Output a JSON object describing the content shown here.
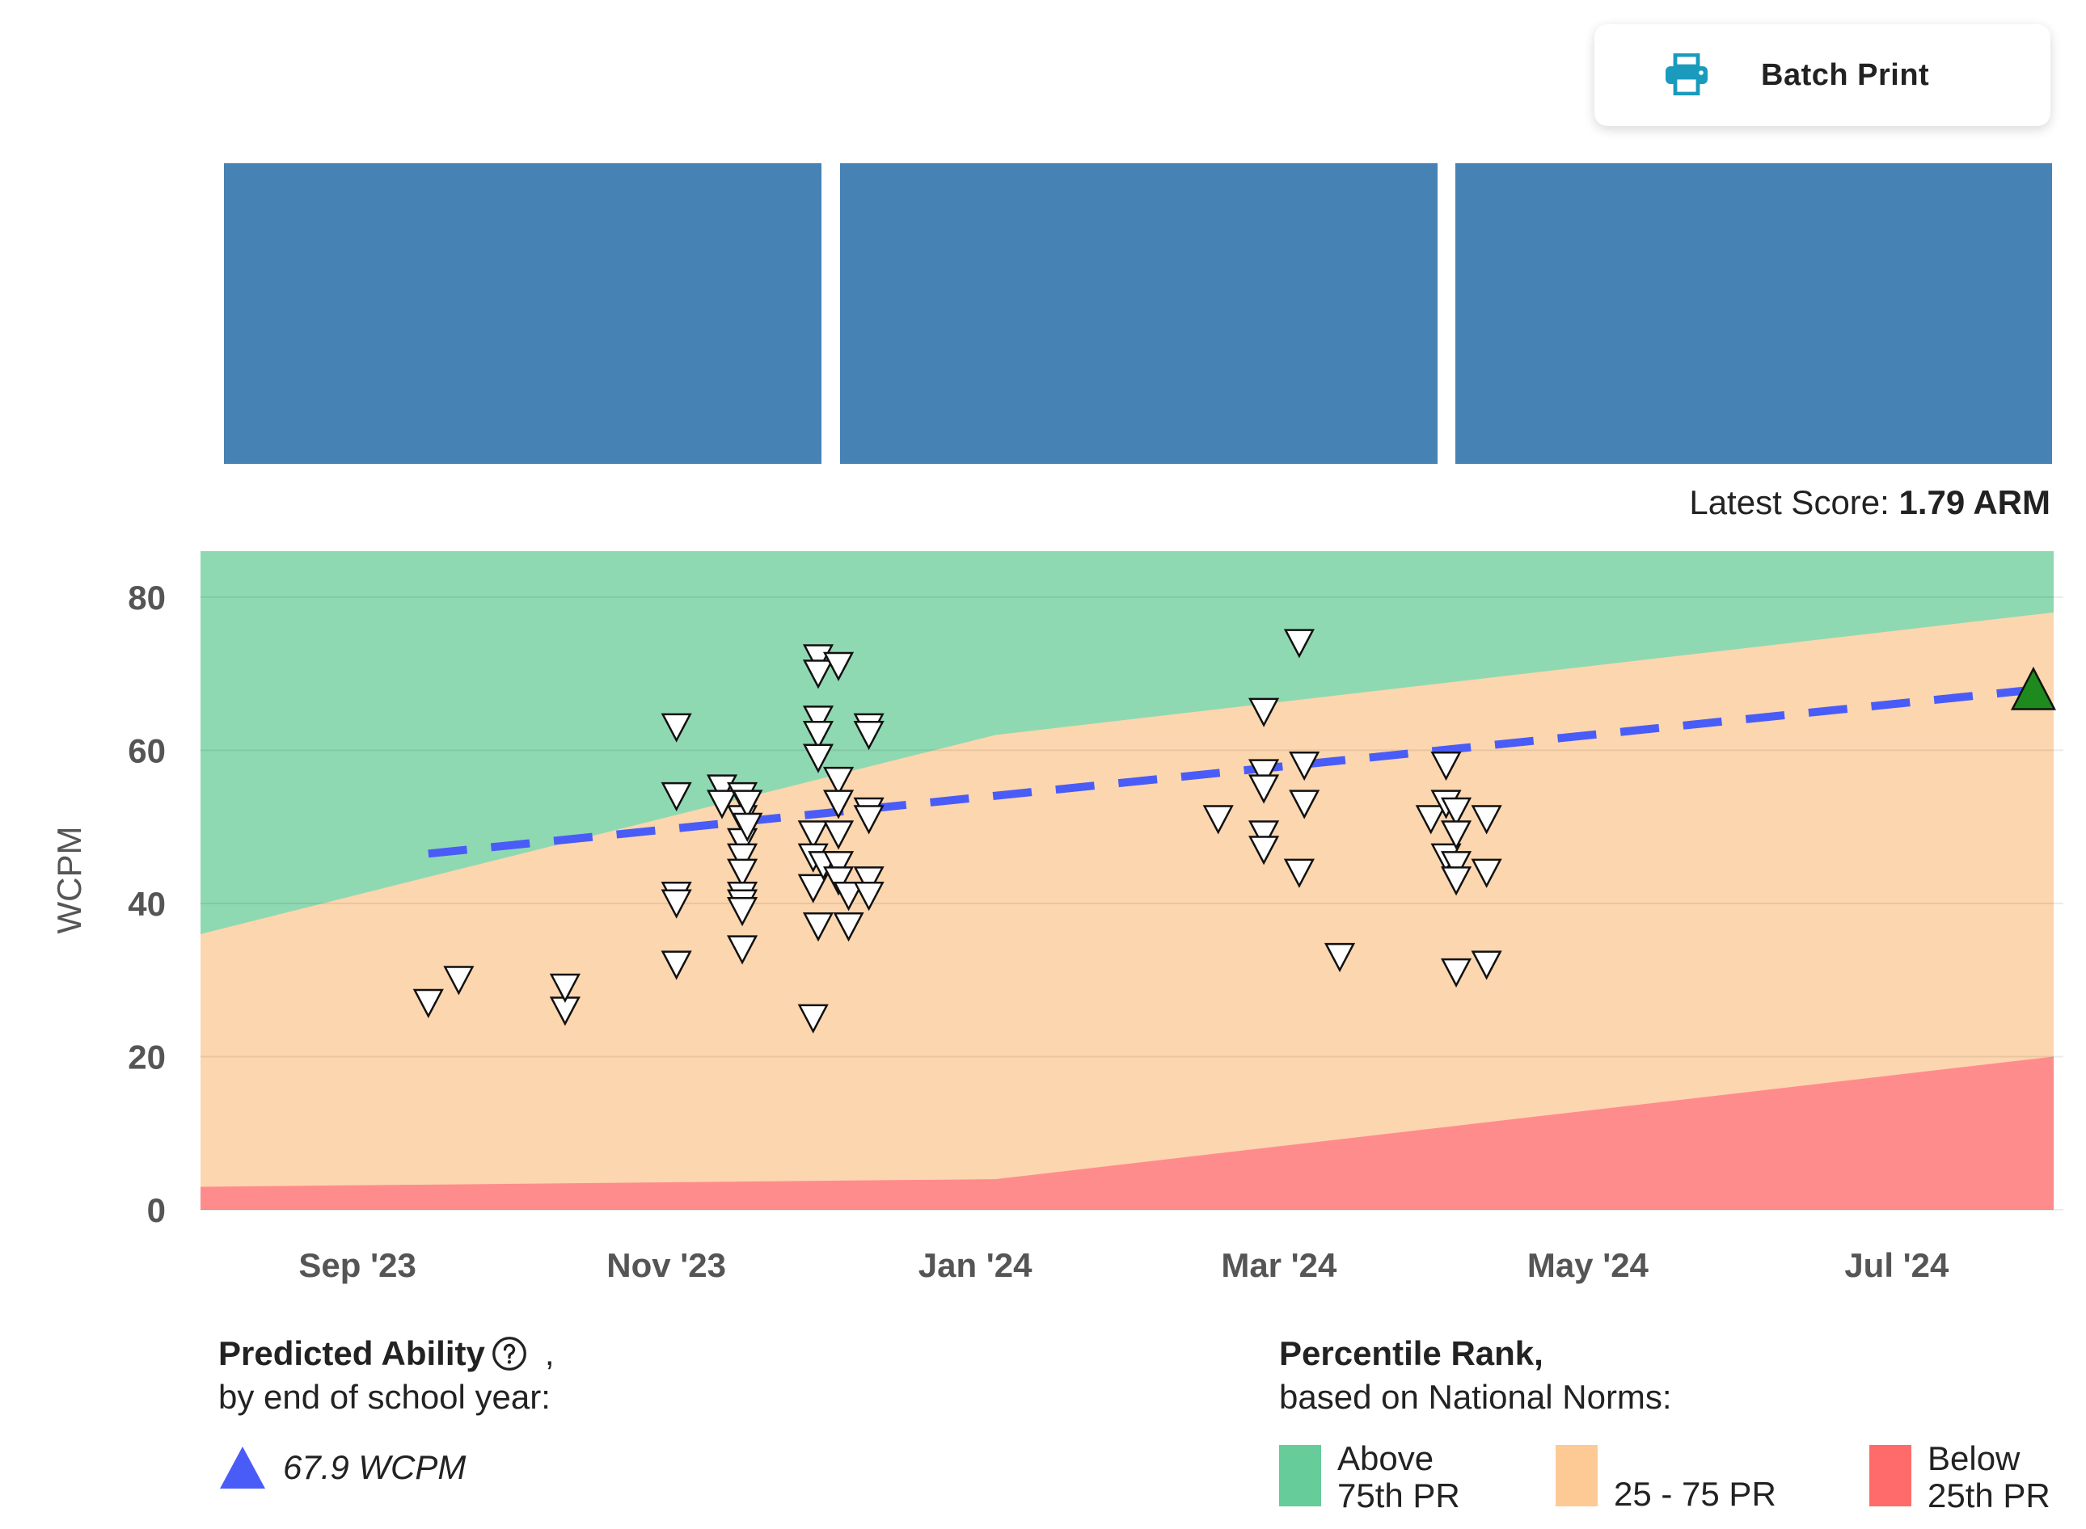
{
  "toolbar": {
    "batch_print_label": "Batch Print",
    "batch_print_icon": "printer-icon",
    "icon_color": "#1a9bbd"
  },
  "tiles": {
    "count": 3,
    "color": "#4682b4"
  },
  "latest_score": {
    "label": "Latest Score:",
    "value": "1.79 ARM"
  },
  "chart_data": {
    "type": "scatter",
    "title": "",
    "xlabel": "",
    "ylabel": "WCPM",
    "x_ticks": [
      "Sep '23",
      "Nov '23",
      "Jan '24",
      "Mar '24",
      "May '24",
      "Jul '24"
    ],
    "x_tick_dates": [
      "2023-09-01",
      "2023-11-01",
      "2024-01-01",
      "2024-03-01",
      "2024-05-01",
      "2024-07-01"
    ],
    "xlim": [
      "2023-08-01",
      "2024-08-01"
    ],
    "y_ticks": [
      0,
      20,
      40,
      60,
      80
    ],
    "ylim": [
      0,
      86
    ],
    "grid": true,
    "bands": [
      {
        "name": "Above 75th PR",
        "color": "#8fd9b2",
        "upper_boundary": [
          [
            "2023-08-01",
            86
          ],
          [
            "2024-08-01",
            86
          ]
        ]
      },
      {
        "name": "25 - 75 PR",
        "color": "#fcd6ae",
        "upper_boundary": [
          [
            "2023-08-01",
            36
          ],
          [
            "2024-01-05",
            62
          ],
          [
            "2024-08-01",
            78
          ]
        ]
      },
      {
        "name": "Below 25th PR",
        "color": "#ff8c8c",
        "upper_boundary": [
          [
            "2023-08-01",
            3
          ],
          [
            "2024-01-05",
            4
          ],
          [
            "2024-08-01",
            20
          ]
        ]
      }
    ],
    "series": [
      {
        "name": "Scores",
        "marker": "triangle-down",
        "points": [
          [
            "2023-09-15",
            27
          ],
          [
            "2023-09-21",
            30
          ],
          [
            "2023-10-12",
            26
          ],
          [
            "2023-10-12",
            29
          ],
          [
            "2023-11-03",
            63
          ],
          [
            "2023-11-03",
            54
          ],
          [
            "2023-11-03",
            41
          ],
          [
            "2023-11-03",
            40
          ],
          [
            "2023-11-03",
            32
          ],
          [
            "2023-11-12",
            55
          ],
          [
            "2023-11-12",
            53
          ],
          [
            "2023-11-16",
            54
          ],
          [
            "2023-11-16",
            51
          ],
          [
            "2023-11-16",
            48
          ],
          [
            "2023-11-16",
            46
          ],
          [
            "2023-11-16",
            44
          ],
          [
            "2023-11-16",
            41
          ],
          [
            "2023-11-16",
            40
          ],
          [
            "2023-11-16",
            39
          ],
          [
            "2023-11-16",
            34
          ],
          [
            "2023-11-17",
            53
          ],
          [
            "2023-11-17",
            50
          ],
          [
            "2023-11-30",
            49
          ],
          [
            "2023-11-30",
            46
          ],
          [
            "2023-11-30",
            42
          ],
          [
            "2023-11-30",
            25
          ],
          [
            "2023-12-01",
            72
          ],
          [
            "2023-12-01",
            70
          ],
          [
            "2023-12-01",
            64
          ],
          [
            "2023-12-01",
            62
          ],
          [
            "2023-12-01",
            59
          ],
          [
            "2023-12-01",
            37
          ],
          [
            "2023-12-02",
            45
          ],
          [
            "2023-12-05",
            71
          ],
          [
            "2023-12-05",
            56
          ],
          [
            "2023-12-05",
            53
          ],
          [
            "2023-12-05",
            49
          ],
          [
            "2023-12-05",
            45
          ],
          [
            "2023-12-05",
            43
          ],
          [
            "2023-12-07",
            41
          ],
          [
            "2023-12-07",
            37
          ],
          [
            "2023-12-11",
            63
          ],
          [
            "2023-12-11",
            62
          ],
          [
            "2023-12-11",
            52
          ],
          [
            "2023-12-11",
            51
          ],
          [
            "2023-12-11",
            43
          ],
          [
            "2023-12-11",
            41
          ],
          [
            "2024-02-18",
            51
          ],
          [
            "2024-02-27",
            65
          ],
          [
            "2024-02-27",
            57
          ],
          [
            "2024-02-27",
            55
          ],
          [
            "2024-02-27",
            49
          ],
          [
            "2024-02-27",
            47
          ],
          [
            "2024-03-05",
            74
          ],
          [
            "2024-03-05",
            44
          ],
          [
            "2024-03-06",
            58
          ],
          [
            "2024-03-06",
            53
          ],
          [
            "2024-03-13",
            33
          ],
          [
            "2024-03-31",
            51
          ],
          [
            "2024-04-03",
            58
          ],
          [
            "2024-04-03",
            53
          ],
          [
            "2024-04-03",
            46
          ],
          [
            "2024-04-05",
            52
          ],
          [
            "2024-04-05",
            49
          ],
          [
            "2024-04-05",
            45
          ],
          [
            "2024-04-05",
            43
          ],
          [
            "2024-04-05",
            31
          ],
          [
            "2024-04-11",
            51
          ],
          [
            "2024-04-11",
            44
          ],
          [
            "2024-04-11",
            32
          ]
        ]
      },
      {
        "name": "Trend",
        "style": "dashed",
        "color": "#4a5cf7",
        "points": [
          [
            "2023-09-15",
            46.5
          ],
          [
            "2024-07-28",
            67.9
          ]
        ]
      },
      {
        "name": "Predicted Ability",
        "marker": "triangle-up",
        "color": "#1e8a1e",
        "points": [
          [
            "2024-07-28",
            67.9
          ]
        ]
      }
    ]
  },
  "legend_predicted": {
    "title": "Predicted Ability",
    "help_icon": "question-circle-icon",
    "comma": ",",
    "subtitle": "by end of school year:",
    "marker_icon": "blue-triangle-icon",
    "marker_color": "#4a5cf7",
    "value_text": "67.9 WCPM"
  },
  "legend_percentile": {
    "title": "Percentile Rank,",
    "subtitle": "based on National Norms:",
    "items": [
      {
        "line1": "Above",
        "line2": "75th PR",
        "color": "#66cc99"
      },
      {
        "line1": "",
        "line2": "25 - 75 PR",
        "color": "#fdca96"
      },
      {
        "line1": "Below",
        "line2": "25th PR",
        "color": "#ff6b6b"
      }
    ]
  }
}
